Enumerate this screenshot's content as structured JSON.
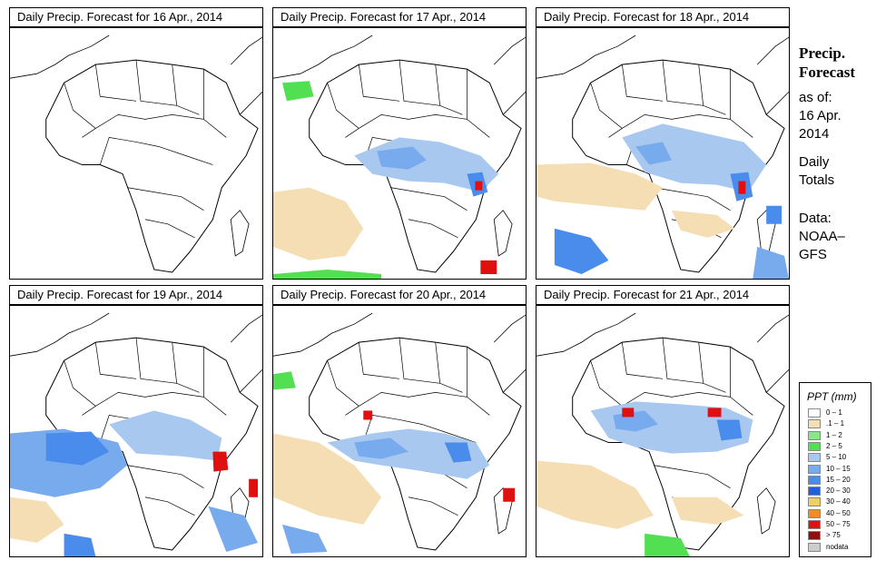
{
  "panels": [
    {
      "title": "Daily Precip. Forecast for  16 Apr., 2014"
    },
    {
      "title": "Daily Precip. Forecast for  17 Apr., 2014"
    },
    {
      "title": "Daily Precip. Forecast for  18 Apr., 2014"
    },
    {
      "title": "Daily Precip. Forecast for  19 Apr., 2014"
    },
    {
      "title": "Daily Precip. Forecast for  20 Apr., 2014"
    },
    {
      "title": "Daily Precip. Forecast for  21 Apr., 2014"
    }
  ],
  "side": {
    "title_line1": "Precip.",
    "title_line2": "Forecast",
    "asof": "as of:",
    "date_line1": "16 Apr.",
    "date_line2": "2014",
    "totals_line1": "Daily",
    "totals_line2": "Totals",
    "data_line1": "Data:",
    "data_line2": "NOAA–",
    "data_line3": "GFS"
  },
  "legend": {
    "title": "PPT (mm)",
    "items": [
      {
        "label": "0 – 1",
        "color": "#ffffff"
      },
      {
        "label": ".1 – 1",
        "color": "#f5deb3"
      },
      {
        "label": "1 – 2",
        "color": "#8ae68a"
      },
      {
        "label": "2 – 5",
        "color": "#52e052"
      },
      {
        "label": "5 – 10",
        "color": "#a8c8f0"
      },
      {
        "label": "10 – 15",
        "color": "#78aaee"
      },
      {
        "label": "15 – 20",
        "color": "#4a8cec"
      },
      {
        "label": "20 – 30",
        "color": "#2060e0"
      },
      {
        "label": "30 – 40",
        "color": "#f0d060"
      },
      {
        "label": "40 – 50",
        "color": "#f08c20"
      },
      {
        "label": "50 – 75",
        "color": "#e01010"
      },
      {
        "label": "> 75",
        "color": "#901010"
      },
      {
        "label": "nodata",
        "color": "#cccccc"
      }
    ]
  }
}
